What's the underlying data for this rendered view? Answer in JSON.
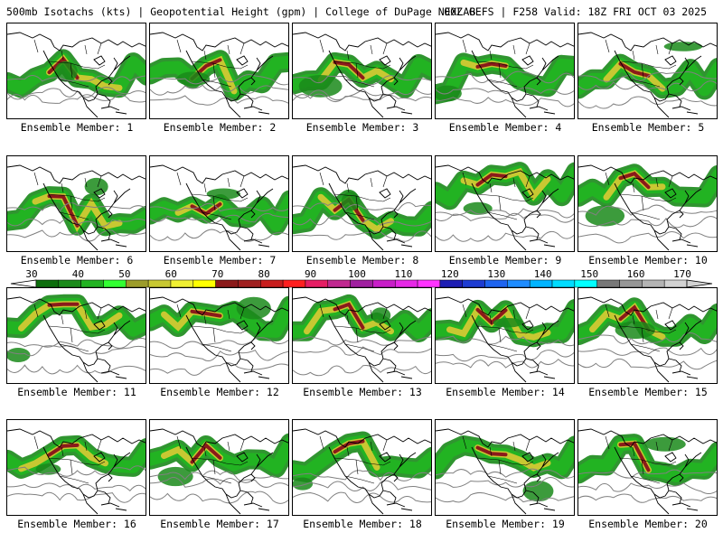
{
  "header": {
    "left": "500mb Isotachs (kts) | Geopotential Height (gpm) | College of DuPage NEXLAB",
    "right": "00Z GEFS | F258 Valid: 18Z FRI OCT 03 2025"
  },
  "colorbar": {
    "ticks": [
      "30",
      "40",
      "50",
      "60",
      "70",
      "80",
      "90",
      "100",
      "110",
      "120",
      "130",
      "140",
      "150",
      "160",
      "170"
    ],
    "colors": [
      "#0d6e0d",
      "#1a8a1a",
      "#22b322",
      "#33ff33",
      "#9c9c2a",
      "#c8c832",
      "#f0f032",
      "#ffff00",
      "#8b1a1a",
      "#a02020",
      "#c81e1e",
      "#ff2020",
      "#e61e64",
      "#c02890",
      "#a020a0",
      "#c81ec8",
      "#e628e6",
      "#ff33ff",
      "#1e1eb4",
      "#1e3cd2",
      "#1e64f0",
      "#1e8cff",
      "#00b4ff",
      "#00dcff",
      "#00ffff",
      "#787878",
      "#969696",
      "#b4b4b4",
      "#d2d2d2"
    ]
  },
  "panels": [
    {
      "label": "Ensemble Member: 1"
    },
    {
      "label": "Ensemble Member: 2"
    },
    {
      "label": "Ensemble Member: 3"
    },
    {
      "label": "Ensemble Member: 4"
    },
    {
      "label": "Ensemble Member: 5"
    },
    {
      "label": "Ensemble Member: 6"
    },
    {
      "label": "Ensemble Member: 7"
    },
    {
      "label": "Ensemble Member: 8"
    },
    {
      "label": "Ensemble Member: 9"
    },
    {
      "label": "Ensemble Member: 10"
    },
    {
      "label": "Ensemble Member: 11"
    },
    {
      "label": "Ensemble Member: 12"
    },
    {
      "label": "Ensemble Member: 13"
    },
    {
      "label": "Ensemble Member: 14"
    },
    {
      "label": "Ensemble Member: 15"
    },
    {
      "label": "Ensemble Member: 16"
    },
    {
      "label": "Ensemble Member: 17"
    },
    {
      "label": "Ensemble Member: 18"
    },
    {
      "label": "Ensemble Member: 19"
    },
    {
      "label": "Ensemble Member: 20"
    }
  ]
}
